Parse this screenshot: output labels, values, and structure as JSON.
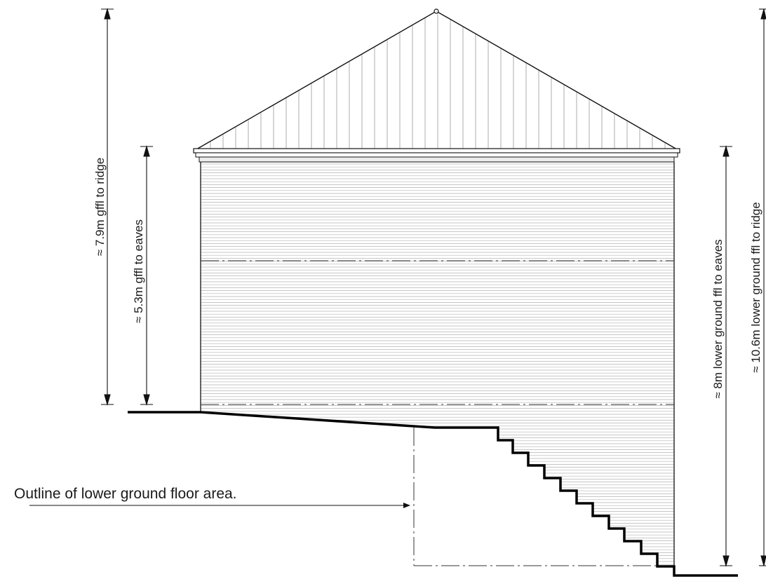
{
  "dimensions": {
    "gffl_to_ridge": "≈ 7.9m gffl to ridge",
    "gffl_to_eaves": "≈ 5.3m gffl to eaves",
    "lower_ground_to_eaves": "≈ 8m lower ground ffl to eaves",
    "lower_ground_to_ridge": "≈ 10.6m lower ground ffl to ridge"
  },
  "annotation": {
    "lower_ground_outline": "Outline of lower ground floor area."
  }
}
